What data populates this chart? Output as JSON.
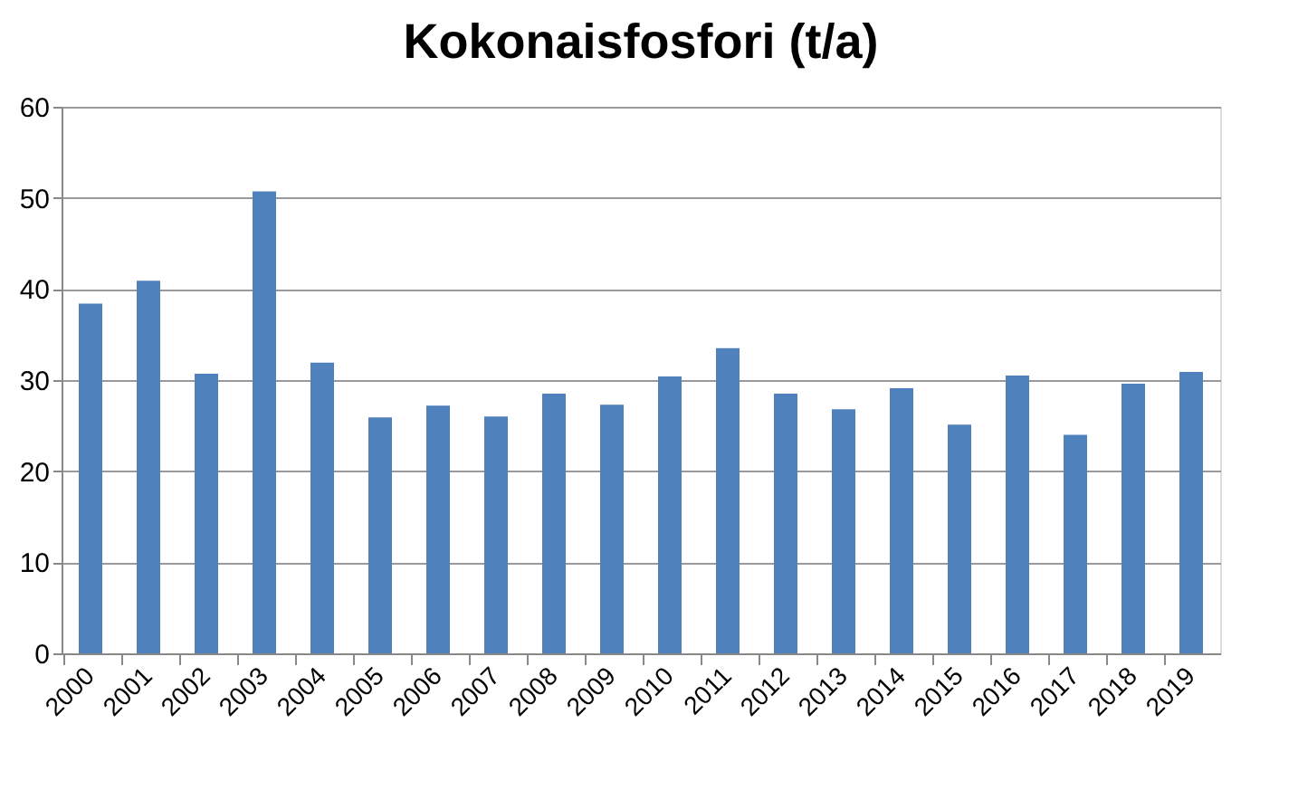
{
  "chart_data": {
    "type": "bar",
    "title": "Kokonaisfosfori (t/a)",
    "categories": [
      "2000",
      "2001",
      "2002",
      "2003",
      "2004",
      "2005",
      "2006",
      "2007",
      "2008",
      "2009",
      "2010",
      "2011",
      "2012",
      "2013",
      "2014",
      "2015",
      "2016",
      "2017",
      "2018",
      "2019"
    ],
    "values": [
      38.4,
      40.9,
      30.7,
      50.7,
      31.9,
      25.9,
      27.2,
      26.0,
      28.5,
      27.3,
      30.4,
      33.5,
      28.5,
      26.8,
      29.1,
      25.1,
      30.5,
      24.0,
      29.6,
      30.9
    ],
    "color": "#4f81bd",
    "ylim": [
      0,
      60
    ],
    "yticks": [
      0,
      10,
      20,
      30,
      40,
      50,
      60
    ],
    "grid": "y"
  }
}
